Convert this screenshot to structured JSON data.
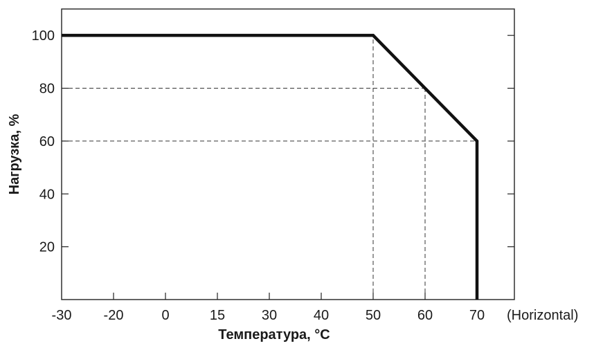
{
  "chart_data": {
    "type": "line",
    "xlabel": "Температура, °C",
    "ylabel": "Нагрузка, %",
    "x_note": "(Horizontal)",
    "x_ticks": [
      {
        "value": -30,
        "label": "-30"
      },
      {
        "value": -20,
        "label": "-20"
      },
      {
        "value": 0,
        "label": "0"
      },
      {
        "value": 15,
        "label": "15"
      },
      {
        "value": 30,
        "label": "30"
      },
      {
        "value": 40,
        "label": "40"
      },
      {
        "value": 50,
        "label": "50"
      },
      {
        "value": 60,
        "label": "60"
      },
      {
        "value": 70,
        "label": "70"
      }
    ],
    "y_ticks": [
      {
        "value": 20,
        "label": "20"
      },
      {
        "value": 40,
        "label": "40"
      },
      {
        "value": 60,
        "label": "60"
      },
      {
        "value": 80,
        "label": "80"
      },
      {
        "value": 100,
        "label": "100"
      }
    ],
    "ylim": [
      0,
      110
    ],
    "series": [
      {
        "points": [
          {
            "x": -30,
            "y": 100
          },
          {
            "x": 50,
            "y": 100
          },
          {
            "x": 60,
            "y": 80
          },
          {
            "x": 70,
            "y": 60
          },
          {
            "x": 70,
            "y": 0
          }
        ],
        "color": "#111111"
      }
    ],
    "reference_lines": [
      {
        "type": "vertical",
        "x": 50,
        "from_y": 0,
        "to_y": 100
      },
      {
        "type": "vertical",
        "x": 60,
        "from_y": 0,
        "to_y": 80
      },
      {
        "type": "horizontal",
        "y": 80,
        "from_x": -30,
        "to_x": 60
      },
      {
        "type": "horizontal",
        "y": 60,
        "from_x": -30,
        "to_x": 70
      }
    ],
    "grid": false,
    "colors": {
      "line": "#111111",
      "frame": "#222222",
      "guide": "#333333"
    }
  }
}
